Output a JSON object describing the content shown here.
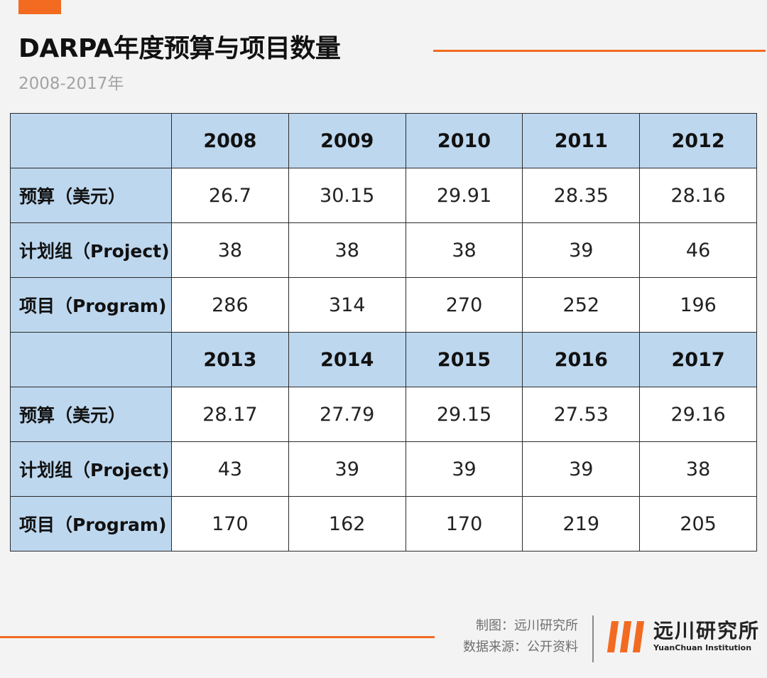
{
  "header": {
    "title": "DARPA年度预算与项目数量",
    "subtitle": "2008-2017年"
  },
  "colors": {
    "accent": "#f26b21",
    "header_fill": "#bdd7ee",
    "cell_fill": "#ffffff",
    "background": "#f3f3f3"
  },
  "chart_data": {
    "type": "table",
    "title": "DARPA年度预算与项目数量",
    "subtitle": "2008-2017年",
    "blocks": [
      {
        "years": [
          "2008",
          "2009",
          "2010",
          "2011",
          "2012"
        ],
        "rows": [
          {
            "label": "预算（美元）",
            "values": [
              "26.7",
              "30.15",
              "29.91",
              "28.35",
              "28.16"
            ]
          },
          {
            "label": "计划组（Project)",
            "values": [
              "38",
              "38",
              "38",
              "39",
              "46"
            ]
          },
          {
            "label": "项目（Program)",
            "values": [
              "286",
              "314",
              "270",
              "252",
              "196"
            ]
          }
        ]
      },
      {
        "years": [
          "2013",
          "2014",
          "2015",
          "2016",
          "2017"
        ],
        "rows": [
          {
            "label": "预算（美元）",
            "values": [
              "28.17",
              "27.79",
              "29.15",
              "27.53",
              "29.16"
            ]
          },
          {
            "label": "计划组（Project)",
            "values": [
              "43",
              "39",
              "39",
              "39",
              "38"
            ]
          },
          {
            "label": "项目（Program)",
            "values": [
              "170",
              "162",
              "170",
              "219",
              "205"
            ]
          }
        ]
      }
    ]
  },
  "footer": {
    "made_by": "制图：远川研究所",
    "source": "数据来源：公开资料",
    "logo_name": "远川研究所",
    "logo_en": "YuanChuan Institution",
    "logo_icon": "brand-bars-icon"
  }
}
